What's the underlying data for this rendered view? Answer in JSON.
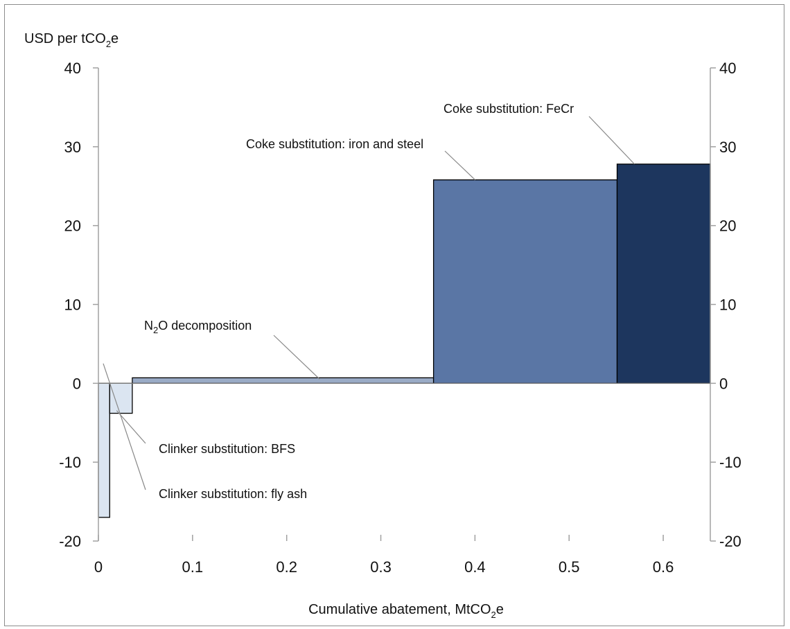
{
  "chart_data": {
    "type": "bar",
    "subtype": "marginal-abatement-cost-curve",
    "ylabel": {
      "text": "USD per tCO",
      "sub": "2",
      "tail": "e"
    },
    "xlabel": {
      "text": "Cumulative abatement, MtCO",
      "sub": "2",
      "tail": "e"
    },
    "xlim": [
      0,
      0.65
    ],
    "ylim": [
      -20,
      40
    ],
    "x_ticks": [
      {
        "value": 0,
        "label": "0"
      },
      {
        "value": 0.1,
        "label": "0.1"
      },
      {
        "value": 0.2,
        "label": "0.2"
      },
      {
        "value": 0.3,
        "label": "0.3"
      },
      {
        "value": 0.4,
        "label": "0.4"
      },
      {
        "value": 0.5,
        "label": "0.5"
      },
      {
        "value": 0.6,
        "label": "0.6"
      }
    ],
    "y_ticks": [
      {
        "value": 40,
        "label": "40"
      },
      {
        "value": 30,
        "label": "30"
      },
      {
        "value": 20,
        "label": "20"
      },
      {
        "value": 10,
        "label": "10"
      },
      {
        "value": 0,
        "label": "0"
      },
      {
        "value": -10,
        "label": "-10"
      },
      {
        "value": -20,
        "label": "-20"
      }
    ],
    "grid": false,
    "secondary_y_axis": true,
    "bars": [
      {
        "name": "Clinker substitution: fly ash",
        "x_start": 0.0,
        "x_end": 0.012,
        "value": -17.0,
        "color": "#dbe5f1"
      },
      {
        "name": "Clinker substitution: BFS",
        "x_start": 0.012,
        "x_end": 0.036,
        "value": -3.8,
        "color": "#dbe5f1"
      },
      {
        "name": "N₂O decomposition",
        "x_start": 0.036,
        "x_end": 0.356,
        "value": 0.7,
        "color": "#9aabc6"
      },
      {
        "name": "Coke substitution: iron and steel",
        "x_start": 0.356,
        "x_end": 0.551,
        "value": 25.8,
        "color": "#5a76a5"
      },
      {
        "name": "Coke substitution: FeCr",
        "x_start": 0.551,
        "x_end": 0.65,
        "value": 27.8,
        "color": "#1d365e"
      }
    ],
    "annotations": [
      {
        "bar": 4,
        "text": "Coke substitution: FeCr"
      },
      {
        "bar": 3,
        "text": "Coke substitution: iron and steel"
      },
      {
        "bar": 2,
        "text": "decomposition",
        "prefix": "N",
        "sub": "2",
        "mid": "O "
      },
      {
        "bar": 1,
        "text": "Clinker substitution: BFS"
      },
      {
        "bar": 0,
        "text": "Clinker substitution: fly ash"
      }
    ]
  }
}
